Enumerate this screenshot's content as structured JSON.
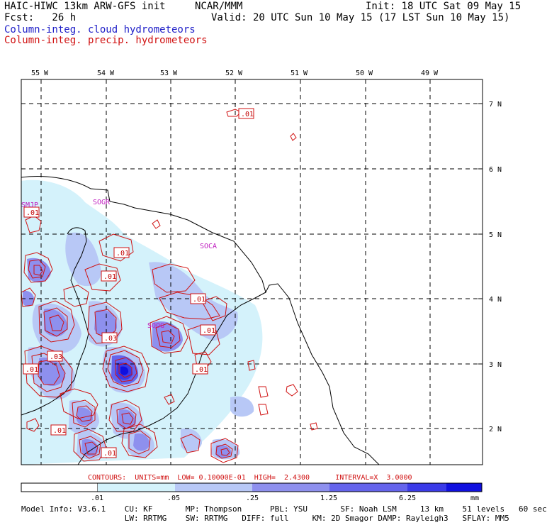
{
  "header": {
    "title_left": "HAIC-HIWC 13km ARW-GFS init",
    "org": "NCAR/MMM",
    "init": "Init: 18 UTC Sat 09 May 15",
    "fcst": "Fcst:   26 h",
    "valid": "Valid: 20 UTC Sun 10 May 15 (17 LST Sun 10 May 15)",
    "field_cloud": "Column-integ. cloud hydrometeors",
    "field_precip": "Column-integ. precip. hydrometeors"
  },
  "map": {
    "lon_labels": [
      "55 W",
      "54 W",
      "53 W",
      "52 W",
      "51 W",
      "50 W",
      "49 W"
    ],
    "lat_labels": [
      "7 N",
      "6 N",
      "5 N",
      "4 N",
      "3 N",
      "2 N"
    ],
    "stations": [
      "SMJP",
      "SOGR",
      "SOCA",
      "SOOG"
    ],
    "contour_labels": [
      ".01",
      ".01",
      ".01",
      ".01",
      ".01",
      ".03",
      ".01",
      ".01",
      ".03",
      ".01",
      ".01",
      ".01"
    ]
  },
  "contour_info": {
    "text": "CONTOURS:  UNITS=mm  LOW= 0.10000E-01  HIGH=  2.4300      INTERVAL=X  3.0000"
  },
  "colorbar": {
    "ticks": [
      ".01",
      ".05",
      ".25",
      "1.25",
      "6.25"
    ],
    "unit": "mm",
    "colors": [
      "#ffffff",
      "#d4f2fb",
      "#b8c8f6",
      "#8e90ee",
      "#6464ec",
      "#3a3ae8",
      "#1010e0"
    ]
  },
  "model_info": {
    "line1": "Model Info: V3.6.1    CU: KF       MP: Thompson      PBL: YSU       SF: Noah LSM     13 km    51 levels   60 sec",
    "line2": "                      LW: RRTMG    SW: RRTMG   DIFF: full     KM: 2D Smagor DAMP: Rayleigh3   SFLAY: MM5"
  },
  "colors": {
    "cloud": "#2020c8",
    "precip_contour": "#d01010",
    "station": "#c020c0"
  }
}
